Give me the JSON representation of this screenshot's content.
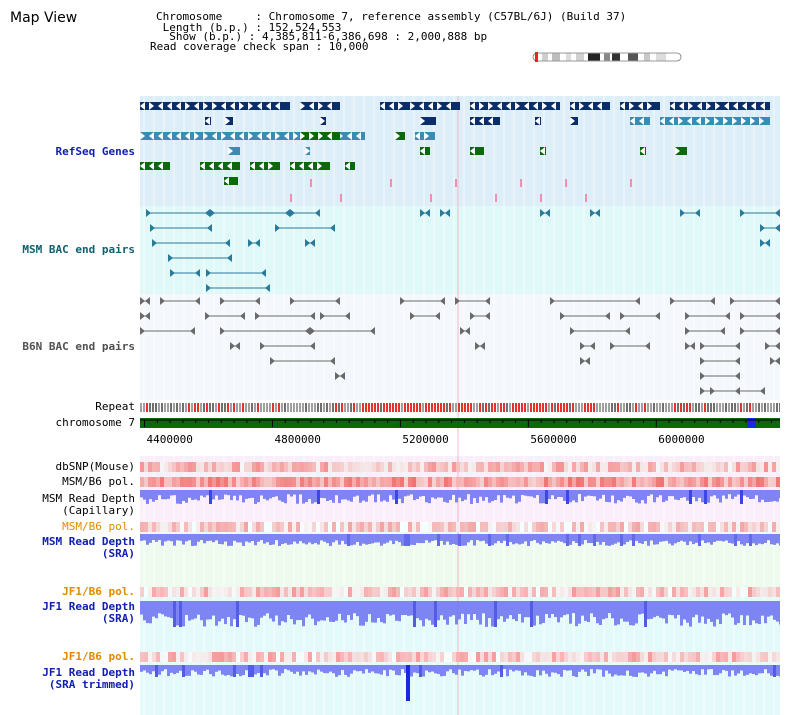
{
  "title": "Map View",
  "info": {
    "chromosome": "Chromosome     : Chromosome 7, reference assembly (C57BL/6J) (Build 37)",
    "length": " Length (b.p.) : 152,524,553",
    "show": "  Show (b.p.) : 4,385,811-6,386,698 : 2,000,888 bp",
    "span": "Read coverage check span : 10,000"
  },
  "labels": {
    "refseq": "RefSeq Genes",
    "msm_bac": "MSM BAC end pairs",
    "b6n_bac": "B6N BAC end pairs",
    "repeat": "Repeat",
    "chromosome": "chromosome 7",
    "dbsnp": "dbSNP(Mouse)",
    "msm_b6_pol_1": "MSM/B6 pol.",
    "msm_read_depth_cap_1": "MSM Read Depth",
    "msm_read_depth_cap_2": "(Capillary)",
    "msm_b6_pol_2": "MSM/B6 pol.",
    "msm_read_depth_sra_1": "MSM Read Depth",
    "msm_read_depth_sra_2": "(SRA)",
    "jf1_b6_pol_1": "JF1/B6 pol.",
    "jf1_read_depth_sra_1": "JF1 Read Depth",
    "jf1_read_depth_sra_2": "(SRA)",
    "jf1_b6_pol_2": "JF1/B6 pol.",
    "jf1_read_depth_trim_1": "JF1 Read Depth",
    "jf1_read_depth_trim_2": "(SRA trimmed)"
  },
  "scale": {
    "ticks": [
      "4400000",
      "4800000",
      "5200000",
      "5600000",
      "6000000"
    ],
    "tick_values": [
      4400000,
      4800000,
      5200000,
      5600000,
      6000000
    ],
    "range": [
      4385811,
      6386698
    ]
  },
  "colors": {
    "refseq_bg": "#ddeef8",
    "bac_bg": "#e0f8f8",
    "b6n_bg": "#f4f8fc",
    "depth_bg": "#fdeefa",
    "sra_bg": "#eefaee",
    "jf1_bg": "#e4fafa",
    "gene_dark": "#0a2e6a",
    "gene_mid": "#3a8cb4",
    "gene_green": "#0a6a0a",
    "chromosome_green": "#0a6a0a",
    "depth_blue": "#1a28e0",
    "pol_red": "#e83030",
    "label_blue": "#1020b0",
    "label_teal": "#106070",
    "label_orange": "#e08a00",
    "label_gray": "#505050"
  }
}
